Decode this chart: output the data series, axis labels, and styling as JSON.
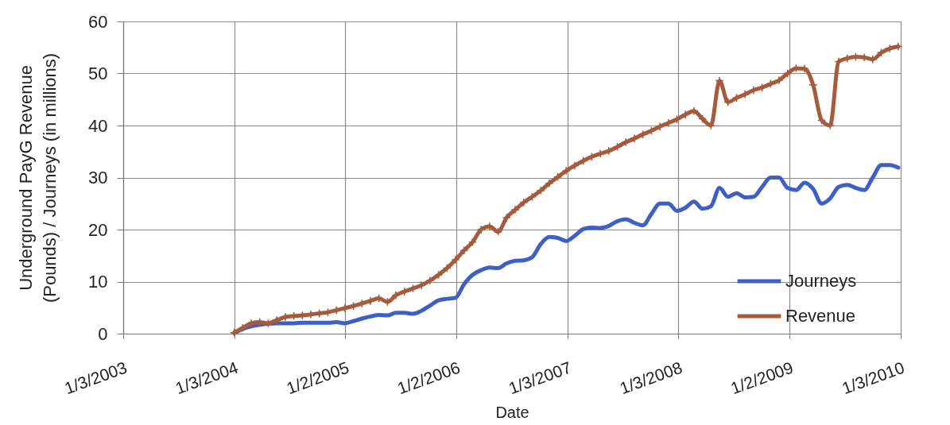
{
  "chart_data": {
    "type": "line",
    "xlabel": "Date",
    "ylabel": "Underground PayG Revenue\n(Pounds) / Journeys (in millions)",
    "x": [
      "2004-01-03",
      "2004-01-31",
      "2004-02-28",
      "2004-03-27",
      "2004-04-24",
      "2004-05-22",
      "2004-06-19",
      "2004-07-17",
      "2004-08-14",
      "2004-09-11",
      "2004-10-09",
      "2004-11-06",
      "2004-12-04",
      "2005-01-01",
      "2005-01-29",
      "2005-02-26",
      "2005-03-26",
      "2005-04-23",
      "2005-05-21",
      "2005-06-18",
      "2005-07-16",
      "2005-08-13",
      "2005-09-10",
      "2005-10-08",
      "2005-11-05",
      "2005-12-03",
      "2005-12-31",
      "2006-01-28",
      "2006-02-25",
      "2006-03-25",
      "2006-04-22",
      "2006-05-20",
      "2006-06-17",
      "2006-07-15",
      "2006-08-12",
      "2006-09-09",
      "2006-10-07",
      "2006-11-04",
      "2006-12-02",
      "2006-12-30",
      "2007-01-27",
      "2007-02-24",
      "2007-03-24",
      "2007-04-21",
      "2007-05-19",
      "2007-06-16",
      "2007-07-14",
      "2007-08-11",
      "2007-09-08",
      "2007-10-06",
      "2007-11-03",
      "2007-12-01",
      "2007-12-29",
      "2008-01-26",
      "2008-02-23",
      "2008-03-22",
      "2008-04-19",
      "2008-05-17",
      "2008-06-14",
      "2008-07-12",
      "2008-08-09",
      "2008-09-06",
      "2008-10-04",
      "2008-11-01",
      "2008-11-29",
      "2008-12-27",
      "2009-01-24",
      "2009-02-21",
      "2009-03-21",
      "2009-04-18",
      "2009-05-16",
      "2009-06-13",
      "2009-07-11",
      "2009-08-08",
      "2009-09-05",
      "2009-10-03",
      "2009-10-31",
      "2009-11-28",
      "2009-12-26"
    ],
    "xlim": [
      "2003-01-03",
      "2010-01-03"
    ],
    "xticks": [
      {
        "value": "2003-01-03",
        "label": "1/3/2003"
      },
      {
        "value": "2004-01-03",
        "label": "1/3/2004"
      },
      {
        "value": "2005-01-02",
        "label": "1/2/2005"
      },
      {
        "value": "2006-01-02",
        "label": "1/2/2006"
      },
      {
        "value": "2007-01-03",
        "label": "1/3/2007"
      },
      {
        "value": "2008-01-03",
        "label": "1/3/2008"
      },
      {
        "value": "2009-01-02",
        "label": "1/2/2009"
      },
      {
        "value": "2010-01-03",
        "label": "1/3/2010"
      }
    ],
    "ylim": [
      0,
      60
    ],
    "yticks": [
      0,
      10,
      20,
      30,
      40,
      50,
      60
    ],
    "grid": true,
    "legend": "bottom right",
    "series": [
      {
        "name": "Journeys",
        "color": "#3d5fc8",
        "values": [
          0.1,
          0.9,
          1.4,
          1.7,
          1.9,
          2.0,
          2.0,
          2.0,
          2.1,
          2.1,
          2.1,
          2.1,
          2.2,
          2.0,
          2.4,
          2.9,
          3.3,
          3.6,
          3.5,
          4.0,
          4.0,
          3.8,
          4.4,
          5.4,
          6.4,
          6.7,
          6.9,
          9.5,
          11.3,
          12.2,
          12.7,
          12.6,
          13.5,
          14.0,
          14.1,
          14.7,
          17.2,
          18.6,
          18.4,
          17.8,
          18.8,
          20.1,
          20.4,
          20.3,
          20.7,
          21.6,
          22.0,
          21.3,
          20.8,
          23.0,
          25.0,
          25.0,
          23.6,
          24.2,
          25.4,
          24.0,
          24.5,
          28.0,
          26.3,
          27.0,
          26.2,
          26.3,
          28.2,
          30.0,
          30.0,
          28.0,
          27.6,
          29.0,
          27.8,
          25.0,
          26.0,
          28.2,
          28.6,
          28.0,
          27.6,
          30.0,
          32.4,
          32.4,
          31.9
        ]
      },
      {
        "name": "Revenue",
        "color": "#a65b3d",
        "marker": "cross",
        "values": [
          0.2,
          1.1,
          2.0,
          2.2,
          2.0,
          2.6,
          3.2,
          3.4,
          3.5,
          3.7,
          3.9,
          4.1,
          4.5,
          4.9,
          5.3,
          5.8,
          6.3,
          6.8,
          6.1,
          7.4,
          8.1,
          8.7,
          9.3,
          10.2,
          11.3,
          12.6,
          14.2,
          16.0,
          17.6,
          20.0,
          20.6,
          19.6,
          22.3,
          23.8,
          25.2,
          26.3,
          27.5,
          28.9,
          30.1,
          31.3,
          32.3,
          33.2,
          34.0,
          34.6,
          35.1,
          35.9,
          36.8,
          37.5,
          38.3,
          39.0,
          39.8,
          40.5,
          41.2,
          42.1,
          42.8,
          41.3,
          40.0,
          48.6,
          44.5,
          45.3,
          46.0,
          46.8,
          47.3,
          48.0,
          48.7,
          50.0,
          51.0,
          50.9,
          47.8,
          41.0,
          40.0,
          52.3,
          52.9,
          53.2,
          53.1,
          52.7,
          54.0,
          54.8,
          55.2
        ]
      }
    ]
  }
}
